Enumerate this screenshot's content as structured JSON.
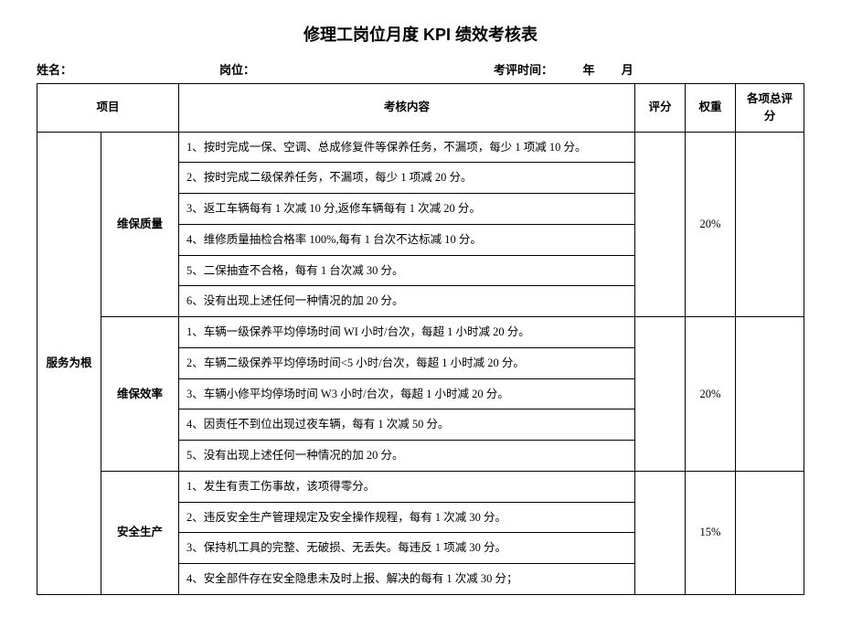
{
  "title": "修理工岗位月度 KPI 绩效考核表",
  "header": {
    "name_label": "姓名：",
    "position_label": "岗位：",
    "time_label": "考评时间：",
    "year_label": "年",
    "month_label": "月"
  },
  "columns": {
    "project": "项目",
    "content": "考核内容",
    "score": "评分",
    "weight": "权重",
    "total": "各项总评分"
  },
  "category": "服务为根",
  "sections": [
    {
      "name": "维保质量",
      "weight": "20%",
      "items": [
        "1、按时完成一保、空调、总成修复件等保养任务，不漏项，每少 1 项减 10 分。",
        "2、按时完成二级保养任务，不漏项，每少 1 项减 20 分。",
        "3、返工车辆每有 1 次减 10 分,返修车辆每有 1 次减 20 分。",
        "4、维修质量抽检合格率 100%,每有 1 台次不达标减 10 分。",
        "5、二保抽查不合格，每有 1 台次减 30 分。",
        "6、没有出现上述任何一种情况的加 20 分。"
      ]
    },
    {
      "name": "维保效率",
      "weight": "20%",
      "items": [
        "1、车辆一级保养平均停场时间 WI 小时/台次，每超 1 小时减 20 分。",
        "2、车辆二级保养平均停场时间<5 小时/台次，每超 1 小时减 20 分。",
        "3、车辆小修平均停场时间 W3 小时/台次，每超 1 小时减 20 分。",
        "4、因责任不到位出现过夜车辆，每有 1 次减 50 分。",
        "5、没有出现上述任何一种情况的加 20 分。"
      ]
    },
    {
      "name": "安全生产",
      "weight": "15%",
      "items": [
        "1、发生有责工伤事故，该项得零分。",
        "2、违反安全生产管理规定及安全操作规程，每有 1 次减 30 分。",
        "3、保持机工具的完整、无破损、无丢失。每违反 1 项减 30 分。",
        "4、安全部件存在安全隐患未及时上报、解决的每有 1 次减 30 分；"
      ]
    }
  ]
}
